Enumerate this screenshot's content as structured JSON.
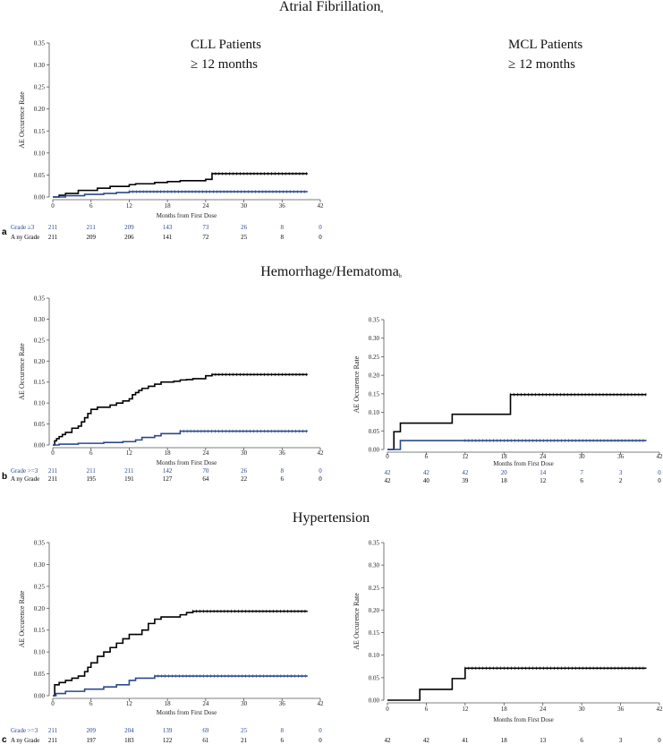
{
  "chart_data": [
    {
      "panel": "a",
      "title": "Atrial Fibrillation",
      "title_superscript": "a",
      "type": "line",
      "charts": [
        {
          "cohort_title": "CLL Patients",
          "cohort_subtitle": "≥ 12 months",
          "xlabel": "Months from First Dose",
          "ylabel": "AE Occurence Rate",
          "xlim": [
            0,
            42
          ],
          "ylim": [
            0,
            0.35
          ],
          "xticks": [
            "0",
            "6",
            "12",
            "18",
            "24",
            "30",
            "36",
            "42"
          ],
          "yticks": [
            "0.00",
            "0.05",
            "0.10",
            "0.15",
            "0.20",
            "0.25",
            "0.30",
            "0.35"
          ],
          "series": [
            {
              "name": "Any Grade",
              "color": "#000000",
              "x": [
                0,
                1,
                2,
                4,
                7,
                9,
                12,
                13,
                16,
                18,
                20,
                24,
                25,
                40
              ],
              "y": [
                0,
                0.004,
                0.008,
                0.015,
                0.02,
                0.024,
                0.028,
                0.03,
                0.033,
                0.035,
                0.037,
                0.04,
                0.053,
                0.053
              ]
            },
            {
              "name": "Grade ≥3",
              "color": "#2a4a8c",
              "x": [
                0,
                2,
                5,
                8,
                10,
                12,
                40
              ],
              "y": [
                0,
                0.003,
                0.006,
                0.008,
                0.01,
                0.012,
                0.012
              ]
            }
          ],
          "risk_table": [
            {
              "label": "Grade ≥3",
              "color": "#2a4a8c",
              "values": [
                "211",
                "211",
                "209",
                "143",
                "73",
                "26",
                "8",
                "0"
              ]
            },
            {
              "label": "A ny Grade",
              "color": "#000000",
              "values": [
                "211",
                "209",
                "206",
                "141",
                "72",
                "25",
                "8",
                "0"
              ]
            }
          ]
        },
        {
          "cohort_title": "MCL Patients",
          "cohort_subtitle": "≥ 12 months"
        }
      ]
    },
    {
      "panel": "b",
      "title": "Hemorrhage/Hematoma",
      "title_superscript": "b",
      "type": "line",
      "charts": [
        {
          "xlabel": "Months from First Dose",
          "ylabel": "AE Occurence Rate",
          "xlim": [
            0,
            42
          ],
          "ylim": [
            0,
            0.35
          ],
          "xticks": [
            "0",
            "6",
            "12",
            "18",
            "24",
            "30",
            "36",
            "42"
          ],
          "yticks": [
            "0.00",
            "0.05",
            "0.10",
            "0.15",
            "0.20",
            "0.25",
            "0.30",
            "0.35"
          ],
          "series": [
            {
              "name": "Any Grade",
              "color": "#000000",
              "x": [
                0,
                0.3,
                0.6,
                1,
                1.5,
                2,
                3,
                4,
                4.5,
                5,
                5.5,
                6,
                7,
                8,
                9,
                10,
                11,
                12,
                12.5,
                13,
                13.5,
                14,
                15,
                16,
                17,
                18,
                19,
                20,
                21,
                22,
                23,
                24,
                25,
                40
              ],
              "y": [
                0,
                0.01,
                0.015,
                0.02,
                0.025,
                0.03,
                0.04,
                0.045,
                0.055,
                0.065,
                0.075,
                0.085,
                0.09,
                0.09,
                0.095,
                0.1,
                0.105,
                0.11,
                0.12,
                0.125,
                0.13,
                0.135,
                0.14,
                0.145,
                0.15,
                0.15,
                0.152,
                0.155,
                0.156,
                0.158,
                0.158,
                0.165,
                0.168,
                0.168
              ]
            },
            {
              "name": "Grade >=3",
              "color": "#2a4a8c",
              "x": [
                0,
                1,
                4,
                8,
                11,
                13,
                14,
                16,
                17,
                20,
                40
              ],
              "y": [
                0,
                0.002,
                0.004,
                0.006,
                0.008,
                0.012,
                0.018,
                0.022,
                0.027,
                0.033,
                0.033
              ]
            }
          ],
          "risk_table": [
            {
              "label": "Grade >=3",
              "color": "#2a4a8c",
              "values": [
                "211",
                "211",
                "211",
                "142",
                "70",
                "26",
                "8",
                "0"
              ]
            },
            {
              "label": "A ny Grade",
              "color": "#000000",
              "values": [
                "211",
                "195",
                "191",
                "127",
                "64",
                "22",
                "6",
                "0"
              ]
            }
          ]
        },
        {
          "xlabel": "Months from First Dose",
          "ylabel": "AE Occurence Rate",
          "xlim": [
            0,
            42
          ],
          "ylim": [
            0,
            0.35
          ],
          "xticks": [
            "0",
            "6",
            "12",
            "18",
            "24",
            "30",
            "36",
            "42"
          ],
          "yticks": [
            "0.00",
            "0.05",
            "0.10",
            "0.15",
            "0.20",
            "0.25",
            "0.30",
            "0.35"
          ],
          "series": [
            {
              "name": "Any Grade",
              "color": "#000000",
              "x": [
                0,
                1,
                2,
                10,
                19,
                40
              ],
              "y": [
                0,
                0.048,
                0.071,
                0.095,
                0.148,
                0.148
              ]
            },
            {
              "name": "Grade >=3",
              "color": "#2a4a8c",
              "x": [
                0,
                2,
                40
              ],
              "y": [
                0,
                0.024,
                0.024
              ]
            }
          ],
          "risk_table": [
            {
              "label": "",
              "color": "#2a4a8c",
              "values": [
                "42",
                "42",
                "42",
                "20",
                "14",
                "7",
                "3",
                "0"
              ]
            },
            {
              "label": "",
              "color": "#000000",
              "values": [
                "42",
                "40",
                "39",
                "18",
                "12",
                "6",
                "2",
                "0"
              ]
            }
          ]
        }
      ]
    },
    {
      "panel": "c",
      "title": "Hypertension",
      "title_superscript": "",
      "type": "line",
      "charts": [
        {
          "xlabel": "Months from First Dose",
          "ylabel": "AE Occurence Rate",
          "xlim": [
            0,
            42
          ],
          "ylim": [
            0,
            0.35
          ],
          "xticks": [
            "0",
            "6",
            "12",
            "18",
            "24",
            "30",
            "36",
            "42"
          ],
          "yticks": [
            "0.00",
            "0.05",
            "0.10",
            "0.15",
            "0.20",
            "0.25",
            "0.30",
            "0.35"
          ],
          "series": [
            {
              "name": "Any Grade",
              "color": "#000000",
              "x": [
                0,
                0.3,
                1,
                2,
                3,
                4,
                5,
                5.5,
                6,
                7,
                8,
                9,
                10,
                11,
                12,
                14,
                15,
                16,
                17,
                20,
                21,
                22,
                40
              ],
              "y": [
                0,
                0.025,
                0.03,
                0.035,
                0.04,
                0.045,
                0.055,
                0.065,
                0.075,
                0.09,
                0.1,
                0.11,
                0.12,
                0.13,
                0.14,
                0.15,
                0.165,
                0.175,
                0.18,
                0.185,
                0.19,
                0.193,
                0.193
              ]
            },
            {
              "name": "Grade >=3",
              "color": "#2a4a8c",
              "x": [
                0,
                0.5,
                2,
                5,
                8,
                10,
                12,
                13,
                16,
                40
              ],
              "y": [
                0,
                0.005,
                0.01,
                0.015,
                0.02,
                0.025,
                0.035,
                0.04,
                0.045,
                0.045
              ]
            }
          ],
          "risk_table": [
            {
              "label": "Grade >=3",
              "color": "#2a4a8c",
              "values": [
                "211",
                "209",
                "204",
                "139",
                "69",
                "25",
                "8",
                "0"
              ]
            },
            {
              "label": "A ny Grade",
              "color": "#000000",
              "values": [
                "211",
                "197",
                "183",
                "122",
                "61",
                "21",
                "6",
                "0"
              ]
            }
          ]
        },
        {
          "xlabel": "Months from First Dose",
          "ylabel": "AE Occurence Rate",
          "xlim": [
            0,
            42
          ],
          "ylim": [
            0,
            0.35
          ],
          "xticks": [
            "0",
            "6",
            "12",
            "18",
            "24",
            "30",
            "36",
            "42"
          ],
          "yticks": [
            "0.00",
            "0.05",
            "0.10",
            "0.15",
            "0.20",
            "0.25",
            "0.30",
            "0.35"
          ],
          "series": [
            {
              "name": "Any Grade",
              "color": "#000000",
              "x": [
                0,
                5,
                10,
                12,
                40
              ],
              "y": [
                0,
                0.024,
                0.048,
                0.071,
                0.071
              ]
            }
          ],
          "risk_table": [
            {
              "label": "",
              "color": "#000000",
              "values": [
                "42",
                "42",
                "41",
                "18",
                "13",
                "6",
                "3",
                "0"
              ]
            }
          ]
        }
      ]
    }
  ]
}
